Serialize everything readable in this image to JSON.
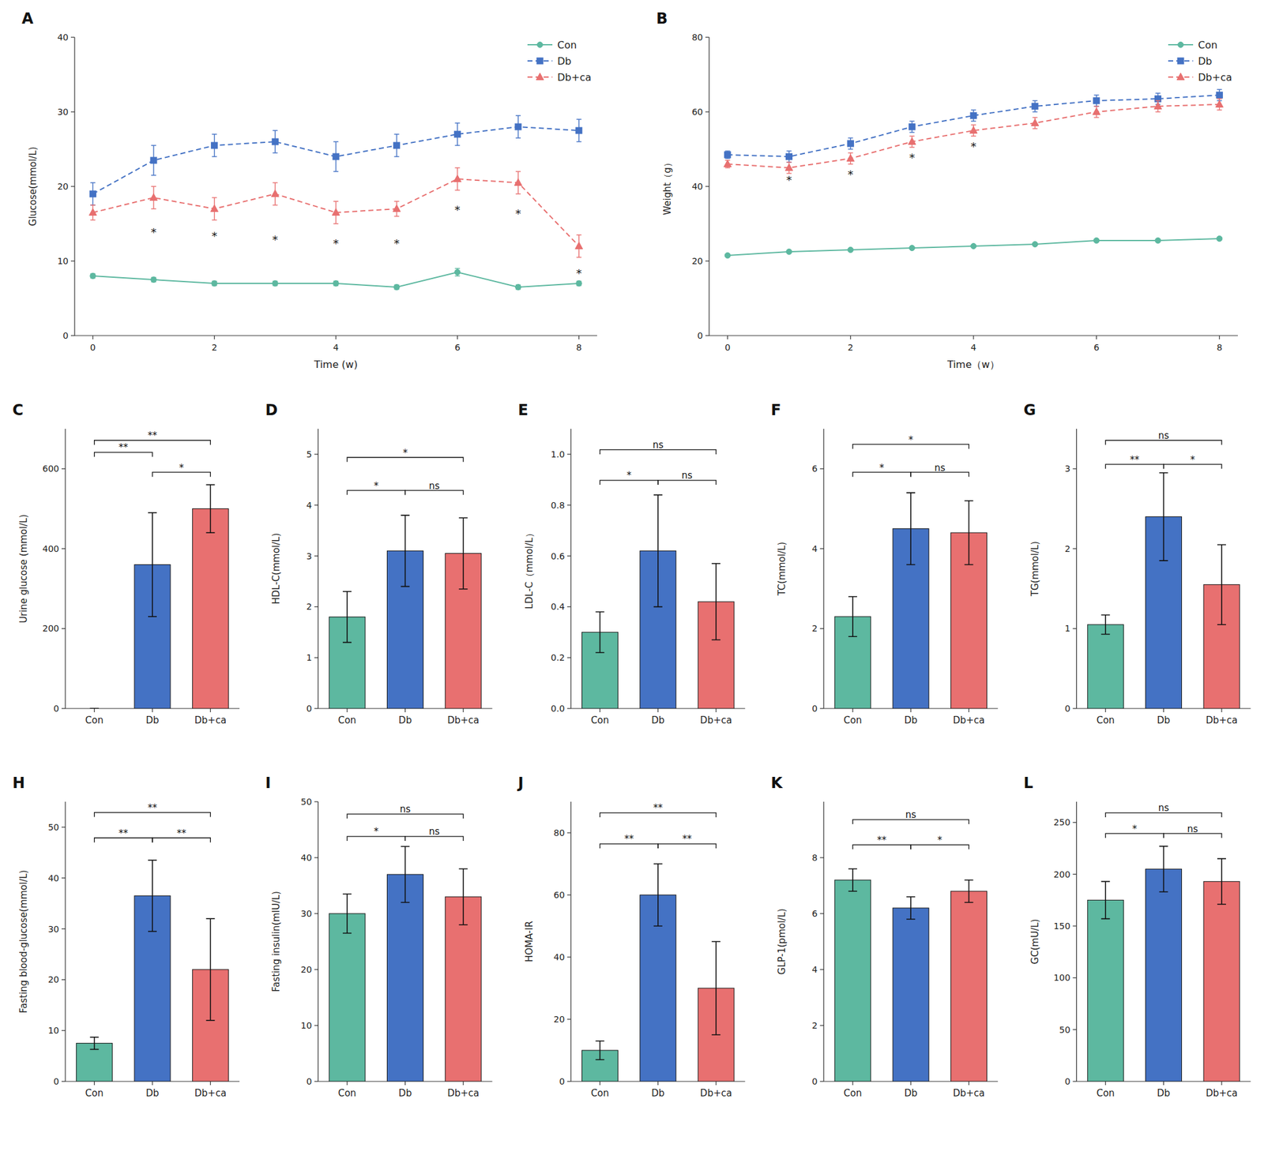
{
  "chart_data": [
    {
      "type": "line",
      "title": "A",
      "xlabel": "Time (w)",
      "ylabel": "Glucose(mmol/L)",
      "xlim": [
        -0.3,
        8.3
      ],
      "ylim": [
        0,
        40
      ],
      "xticks": [
        0,
        2,
        4,
        6,
        8
      ],
      "yticks": [
        0,
        10,
        20,
        30,
        40
      ],
      "grid": false,
      "legend": "upper right",
      "x": [
        0,
        1,
        2,
        3,
        4,
        5,
        6,
        7,
        8
      ],
      "series": [
        {
          "name": "Con",
          "color": "#5db8a0",
          "marker": "circle",
          "line_style": "solid",
          "values": [
            8.0,
            7.5,
            7.0,
            7.0,
            7.0,
            6.5,
            8.5,
            6.5,
            7.0
          ],
          "errors": [
            0.3,
            0.3,
            0.3,
            0.3,
            0.3,
            0.3,
            0.5,
            0.3,
            0.3
          ]
        },
        {
          "name": "Db",
          "color": "#4472c4",
          "marker": "square",
          "line_style": "dashed",
          "values": [
            19.0,
            23.5,
            25.5,
            26.0,
            24.0,
            25.5,
            27.0,
            28.0,
            27.5
          ],
          "errors": [
            1.5,
            2.0,
            1.5,
            1.5,
            2.0,
            1.5,
            1.5,
            1.5,
            1.5
          ]
        },
        {
          "name": "Db+ca",
          "color": "#e87070",
          "marker": "triangle",
          "line_style": "dashed",
          "values": [
            16.5,
            18.5,
            17.0,
            19.0,
            16.5,
            17.0,
            21.0,
            20.5,
            12.0
          ],
          "errors": [
            1.0,
            1.5,
            1.5,
            1.5,
            1.5,
            1.0,
            1.5,
            1.5,
            1.5
          ]
        }
      ],
      "annotations": [
        {
          "text": "*",
          "x": 1,
          "y": 14.5
        },
        {
          "text": "*",
          "x": 2,
          "y": 14.0
        },
        {
          "text": "*",
          "x": 3,
          "y": 13.5
        },
        {
          "text": "*",
          "x": 4,
          "y": 13.0
        },
        {
          "text": "*",
          "x": 5,
          "y": 13.0
        },
        {
          "text": "*",
          "x": 6,
          "y": 17.5
        },
        {
          "text": "*",
          "x": 7,
          "y": 17.0
        },
        {
          "text": "*",
          "x": 8,
          "y": 9.0
        }
      ]
    },
    {
      "type": "line",
      "title": "B",
      "xlabel": "Time（w）",
      "ylabel": "Weight（g）",
      "xlim": [
        -0.3,
        8.3
      ],
      "ylim": [
        0,
        80
      ],
      "xticks": [
        0,
        2,
        4,
        6,
        8
      ],
      "yticks": [
        0,
        20,
        40,
        60,
        80
      ],
      "grid": false,
      "legend": "upper right",
      "x": [
        0,
        1,
        2,
        3,
        4,
        5,
        6,
        7,
        8
      ],
      "series": [
        {
          "name": "Con",
          "color": "#5db8a0",
          "marker": "circle",
          "line_style": "solid",
          "values": [
            21.5,
            22.5,
            23.0,
            23.5,
            24.0,
            24.5,
            25.5,
            25.5,
            26.0
          ],
          "errors": [
            0.2,
            0.2,
            0.2,
            0.2,
            0.2,
            0.2,
            0.3,
            0.3,
            0.3
          ]
        },
        {
          "name": "Db",
          "color": "#4472c4",
          "marker": "square",
          "line_style": "dashed",
          "values": [
            48.5,
            48.0,
            51.5,
            56.0,
            59.0,
            61.5,
            63.0,
            63.5,
            64.5
          ],
          "errors": [
            1.0,
            1.5,
            1.5,
            1.5,
            1.5,
            1.5,
            1.5,
            1.5,
            1.5
          ]
        },
        {
          "name": "Db+ca",
          "color": "#e87070",
          "marker": "triangle",
          "line_style": "dashed",
          "values": [
            46.0,
            45.0,
            47.5,
            52.0,
            55.0,
            57.0,
            60.0,
            61.5,
            62.0
          ],
          "errors": [
            1.0,
            1.5,
            1.5,
            1.5,
            1.5,
            1.5,
            1.5,
            1.5,
            1.5
          ]
        }
      ],
      "annotations": [
        {
          "text": "*",
          "x": 1,
          "y": 43.0
        },
        {
          "text": "*",
          "x": 2,
          "y": 44.5
        },
        {
          "text": "*",
          "x": 3,
          "y": 49.0
        },
        {
          "text": "*",
          "x": 4,
          "y": 52.0
        }
      ]
    },
    {
      "type": "bar",
      "title": "C",
      "ylabel": "Urine glucose (mmol/L)",
      "grid": false,
      "categories": [
        "Con",
        "Db",
        "Db+ca"
      ],
      "values": [
        0,
        360,
        500
      ],
      "errors": [
        0,
        130,
        60
      ],
      "colors": [
        "#ffffff",
        "#4472c4",
        "#e87070"
      ],
      "ylim": [
        0,
        700
      ],
      "yticks": [
        0,
        200,
        400,
        600
      ],
      "annotations": [
        {
          "text": "**",
          "from": "Con",
          "to": "Db",
          "y": 630
        },
        {
          "text": "*",
          "from": "Db",
          "to": "Db+ca",
          "y": 580
        },
        {
          "text": "**",
          "from": "Con",
          "to": "Db+ca",
          "y": 660
        }
      ]
    },
    {
      "type": "bar",
      "title": "D",
      "ylabel": "HDL-C(mmol/L)",
      "grid": false,
      "categories": [
        "Con",
        "Db",
        "Db+ca"
      ],
      "values": [
        1.8,
        3.1,
        3.05
      ],
      "errors": [
        0.5,
        0.7,
        0.7
      ],
      "colors": [
        "#5db8a0",
        "#4472c4",
        "#e87070"
      ],
      "ylim": [
        0,
        5.5
      ],
      "yticks": [
        0,
        1,
        2,
        3,
        4,
        5
      ],
      "annotations": [
        {
          "text": "*",
          "from": "Con",
          "to": "Db",
          "y": 4.2
        },
        {
          "text": "ns",
          "from": "Db",
          "to": "Db+ca",
          "y": 4.2
        },
        {
          "text": "*",
          "from": "Con",
          "to": "Db+ca",
          "y": 4.85
        }
      ]
    },
    {
      "type": "bar",
      "title": "E",
      "ylabel": "LDL-C（mmol/L）",
      "grid": false,
      "categories": [
        "Con",
        "Db",
        "Db+ca"
      ],
      "values": [
        0.3,
        0.62,
        0.42
      ],
      "errors": [
        0.08,
        0.22,
        0.15
      ],
      "colors": [
        "#5db8a0",
        "#4472c4",
        "#e87070"
      ],
      "ylim": [
        0.0,
        1.1
      ],
      "yticks": [
        {
          "value": 0.0,
          "label": "0.0"
        },
        0.2,
        0.4,
        0.6,
        0.8,
        {
          "value": 1.0,
          "label": "1.0"
        }
      ],
      "annotations": [
        {
          "text": "*",
          "from": "Con",
          "to": "Db",
          "y": 0.88
        },
        {
          "text": "ns",
          "from": "Db",
          "to": "Db+ca",
          "y": 0.88
        },
        {
          "text": "ns",
          "from": "Con",
          "to": "Db+ca",
          "y": 1.0
        }
      ]
    },
    {
      "type": "bar",
      "title": "F",
      "ylabel": "TC(mmol/L)",
      "grid": false,
      "categories": [
        "Con",
        "Db",
        "Db+ca"
      ],
      "values": [
        2.3,
        4.5,
        4.4
      ],
      "errors": [
        0.5,
        0.9,
        0.8
      ],
      "colors": [
        "#5db8a0",
        "#4472c4",
        "#e87070"
      ],
      "ylim": [
        0,
        7
      ],
      "yticks": [
        0,
        2,
        4,
        6
      ],
      "annotations": [
        {
          "text": "*",
          "from": "Con",
          "to": "Db",
          "y": 5.8
        },
        {
          "text": "ns",
          "from": "Db",
          "to": "Db+ca",
          "y": 5.8
        },
        {
          "text": "*",
          "from": "Con",
          "to": "Db+ca",
          "y": 6.5
        }
      ]
    },
    {
      "type": "bar",
      "title": "G",
      "ylabel": "TG(mmol/L)",
      "grid": false,
      "categories": [
        "Con",
        "Db",
        "Db+ca"
      ],
      "values": [
        1.05,
        2.4,
        1.55
      ],
      "errors": [
        0.12,
        0.55,
        0.5
      ],
      "colors": [
        "#5db8a0",
        "#4472c4",
        "#e87070"
      ],
      "ylim": [
        0,
        3.5
      ],
      "yticks": [
        0,
        1,
        2,
        3
      ],
      "annotations": [
        {
          "text": "**",
          "from": "Con",
          "to": "Db",
          "y": 3.0
        },
        {
          "text": "*",
          "from": "Db",
          "to": "Db+ca",
          "y": 3.0
        },
        {
          "text": "ns",
          "from": "Con",
          "to": "Db+ca",
          "y": 3.3
        }
      ]
    },
    {
      "type": "bar",
      "title": "H",
      "ylabel": "Fasting blood-glucose(mmol/L)",
      "grid": false,
      "categories": [
        "Con",
        "Db",
        "Db+ca"
      ],
      "values": [
        7.5,
        36.5,
        22.0
      ],
      "errors": [
        1.2,
        7.0,
        10.0
      ],
      "colors": [
        "#5db8a0",
        "#4472c4",
        "#e87070"
      ],
      "ylim": [
        0,
        55
      ],
      "yticks": [
        0,
        10,
        20,
        30,
        40,
        50
      ],
      "annotations": [
        {
          "text": "**",
          "from": "Con",
          "to": "Db",
          "y": 47
        },
        {
          "text": "**",
          "from": "Db",
          "to": "Db+ca",
          "y": 47
        },
        {
          "text": "**",
          "from": "Con",
          "to": "Db+ca",
          "y": 52
        }
      ]
    },
    {
      "type": "bar",
      "title": "I",
      "ylabel": "Fasting insulin(mIU/L)",
      "grid": false,
      "categories": [
        "Con",
        "Db",
        "Db+ca"
      ],
      "values": [
        30.0,
        37.0,
        33.0
      ],
      "errors": [
        3.5,
        5.0,
        5.0
      ],
      "colors": [
        "#5db8a0",
        "#4472c4",
        "#e87070"
      ],
      "ylim": [
        0,
        50
      ],
      "yticks": [
        0,
        10,
        20,
        30,
        40,
        50
      ],
      "annotations": [
        {
          "text": "*",
          "from": "Con",
          "to": "Db",
          "y": 43
        },
        {
          "text": "ns",
          "from": "Db",
          "to": "Db+ca",
          "y": 43
        },
        {
          "text": "ns",
          "from": "Con",
          "to": "Db+ca",
          "y": 47
        }
      ]
    },
    {
      "type": "bar",
      "title": "J",
      "ylabel": "HOMA-IR",
      "grid": false,
      "categories": [
        "Con",
        "Db",
        "Db+ca"
      ],
      "values": [
        10.0,
        60.0,
        30.0
      ],
      "errors": [
        3.0,
        10.0,
        15.0
      ],
      "colors": [
        "#5db8a0",
        "#4472c4",
        "#e87070"
      ],
      "ylim": [
        0,
        90
      ],
      "yticks": [
        0,
        20,
        40,
        60,
        80
      ],
      "annotations": [
        {
          "text": "**",
          "from": "Con",
          "to": "Db",
          "y": 75
        },
        {
          "text": "**",
          "from": "Db",
          "to": "Db+ca",
          "y": 75
        },
        {
          "text": "**",
          "from": "Con",
          "to": "Db+ca",
          "y": 85
        }
      ]
    },
    {
      "type": "bar",
      "title": "K",
      "ylabel": "GLP-1(pmol/L)",
      "grid": false,
      "categories": [
        "Con",
        "Db",
        "Db+ca"
      ],
      "values": [
        7.2,
        6.2,
        6.8
      ],
      "errors": [
        0.4,
        0.4,
        0.4
      ],
      "colors": [
        "#5db8a0",
        "#4472c4",
        "#e87070"
      ],
      "ylim": [
        0,
        10
      ],
      "yticks": [
        0,
        2,
        4,
        6,
        8
      ],
      "annotations": [
        {
          "text": "**",
          "from": "Con",
          "to": "Db",
          "y": 8.3
        },
        {
          "text": "*",
          "from": "Db",
          "to": "Db+ca",
          "y": 8.3
        },
        {
          "text": "ns",
          "from": "Con",
          "to": "Db+ca",
          "y": 9.2
        }
      ]
    },
    {
      "type": "bar",
      "title": "L",
      "ylabel": "GC(mU/L)",
      "grid": false,
      "categories": [
        "Con",
        "Db",
        "Db+ca"
      ],
      "values": [
        175.0,
        205.0,
        193.0
      ],
      "errors": [
        18.0,
        22.0,
        22.0
      ],
      "colors": [
        "#5db8a0",
        "#4472c4",
        "#e87070"
      ],
      "ylim": [
        0,
        270
      ],
      "yticks": [
        0,
        50,
        100,
        150,
        200,
        250
      ],
      "annotations": [
        {
          "text": "*",
          "from": "Con",
          "to": "Db",
          "y": 235
        },
        {
          "text": "ns",
          "from": "Db",
          "to": "Db+ca",
          "y": 235
        },
        {
          "text": "ns",
          "from": "Con",
          "to": "Db+ca",
          "y": 255
        }
      ]
    }
  ]
}
